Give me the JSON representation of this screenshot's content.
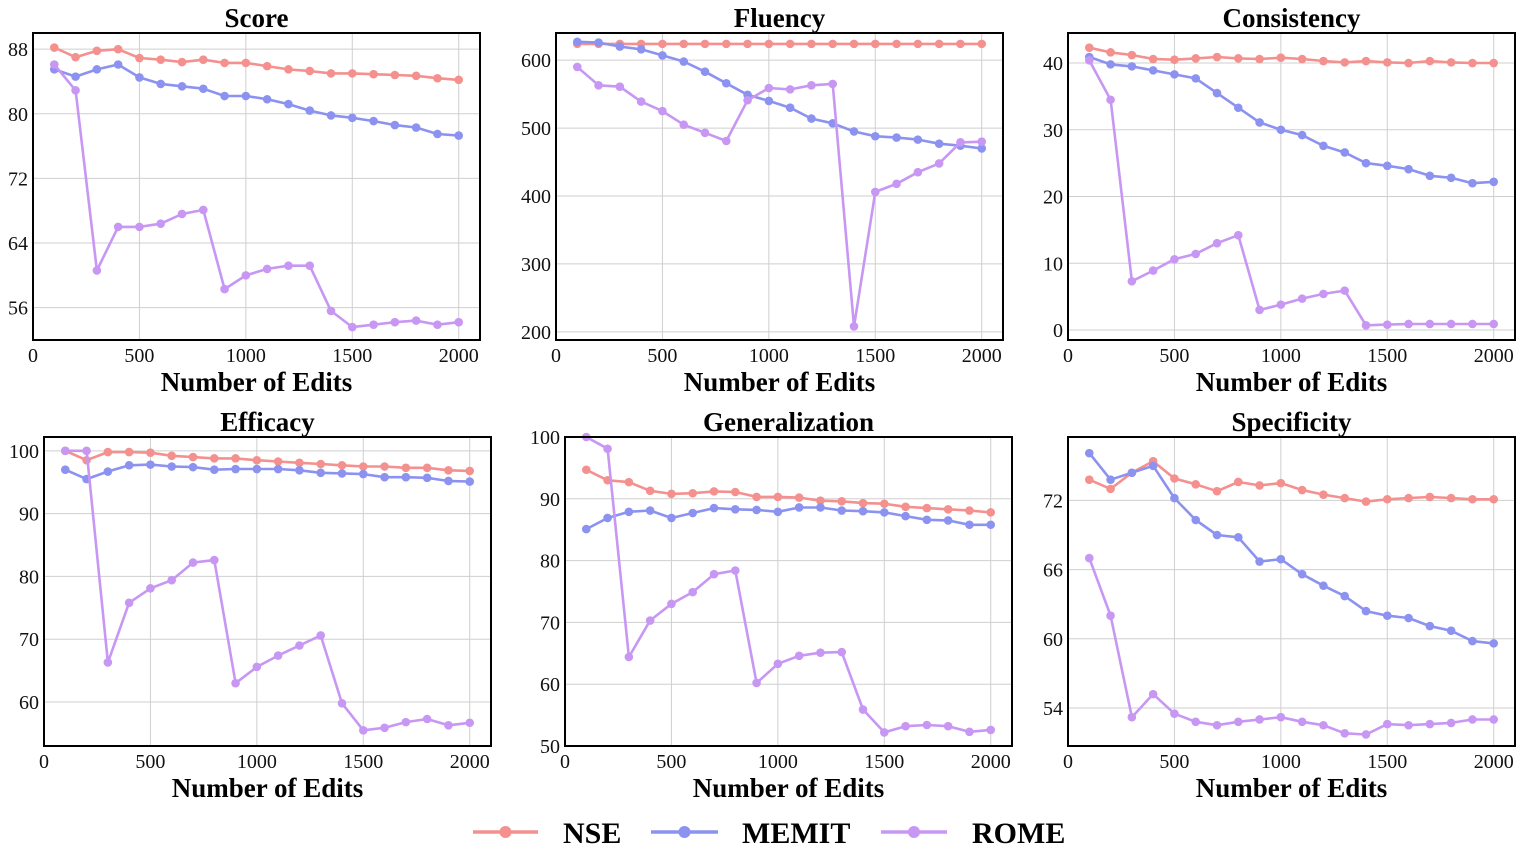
{
  "colors": {
    "NSE": "#f4908e",
    "MEMIT": "#8c92f0",
    "ROME": "#c797f3",
    "grid": "#cfcfcf",
    "axis": "#000000"
  },
  "legend": [
    {
      "name": "NSE",
      "color": "#f4908e"
    },
    {
      "name": "MEMIT",
      "color": "#8c92f0"
    },
    {
      "name": "ROME",
      "color": "#c797f3"
    }
  ],
  "chart_data": [
    {
      "type": "line",
      "title": "Score",
      "xlabel": "Number of Edits",
      "ylabel": "",
      "xlim": [
        0,
        2100
      ],
      "ylim": [
        52,
        90
      ],
      "xticks": [
        0,
        500,
        1000,
        1500,
        2000
      ],
      "yticks": [
        56,
        64,
        72,
        80,
        88
      ],
      "x": [
        100,
        200,
        300,
        400,
        500,
        600,
        700,
        800,
        900,
        1000,
        1100,
        1200,
        1300,
        1400,
        1500,
        1600,
        1700,
        1800,
        1900,
        2000
      ],
      "series": [
        {
          "name": "NSE",
          "values": [
            88.2,
            87.0,
            87.8,
            88.0,
            86.9,
            86.7,
            86.4,
            86.7,
            86.3,
            86.3,
            85.9,
            85.5,
            85.3,
            85.0,
            85.0,
            84.9,
            84.8,
            84.7,
            84.4,
            84.2
          ]
        },
        {
          "name": "MEMIT",
          "values": [
            85.5,
            84.6,
            85.5,
            86.1,
            84.5,
            83.7,
            83.4,
            83.1,
            82.2,
            82.2,
            81.8,
            81.2,
            80.4,
            79.8,
            79.5,
            79.1,
            78.6,
            78.3,
            77.5,
            77.3
          ]
        },
        {
          "name": "ROME",
          "values": [
            86.1,
            82.9,
            60.6,
            66.0,
            66.0,
            66.4,
            67.6,
            68.1,
            58.3,
            60.0,
            60.8,
            61.2,
            61.2,
            55.6,
            53.6,
            53.9,
            54.2,
            54.4,
            53.9,
            54.2
          ]
        }
      ]
    },
    {
      "type": "line",
      "title": "Fluency",
      "xlabel": "Number of Edits",
      "ylabel": "",
      "xlim": [
        0,
        2100
      ],
      "ylim": [
        188,
        640
      ],
      "xticks": [
        0,
        500,
        1000,
        1500,
        2000
      ],
      "yticks": [
        200,
        300,
        400,
        500,
        600
      ],
      "x": [
        100,
        200,
        300,
        400,
        500,
        600,
        700,
        800,
        900,
        1000,
        1100,
        1200,
        1300,
        1400,
        1500,
        1600,
        1700,
        1800,
        1900,
        2000
      ],
      "series": [
        {
          "name": "NSE",
          "values": [
            624,
            624,
            624,
            624,
            624,
            624,
            624,
            624,
            624,
            624,
            624,
            624,
            624,
            624,
            624,
            624,
            624,
            624,
            624,
            624
          ]
        },
        {
          "name": "MEMIT",
          "values": [
            627,
            626,
            620,
            616,
            607,
            598,
            583,
            566,
            549,
            540,
            530,
            514,
            507,
            495,
            488,
            486,
            483,
            477,
            474,
            470
          ]
        },
        {
          "name": "ROME",
          "values": [
            590,
            563,
            561,
            539,
            525,
            505,
            493,
            481,
            541,
            559,
            557,
            563,
            565,
            208,
            406,
            418,
            435,
            448,
            479,
            480
          ]
        }
      ]
    },
    {
      "type": "line",
      "title": "Consistency",
      "xlabel": "Number of Edits",
      "ylabel": "",
      "xlim": [
        0,
        2100
      ],
      "ylim": [
        -1.5,
        44.5
      ],
      "xticks": [
        0,
        500,
        1000,
        1500,
        2000
      ],
      "yticks": [
        0,
        10,
        20,
        30,
        40
      ],
      "x": [
        100,
        200,
        300,
        400,
        500,
        600,
        700,
        800,
        900,
        1000,
        1100,
        1200,
        1300,
        1400,
        1500,
        1600,
        1700,
        1800,
        1900,
        2000
      ],
      "series": [
        {
          "name": "NSE",
          "values": [
            42.3,
            41.6,
            41.2,
            40.6,
            40.5,
            40.7,
            40.9,
            40.7,
            40.6,
            40.8,
            40.6,
            40.3,
            40.1,
            40.3,
            40.1,
            40.0,
            40.3,
            40.1,
            40.0,
            40.0
          ]
        },
        {
          "name": "MEMIT",
          "values": [
            40.9,
            39.8,
            39.5,
            38.9,
            38.3,
            37.7,
            35.5,
            33.3,
            31.1,
            30.0,
            29.2,
            27.6,
            26.6,
            25.0,
            24.6,
            24.1,
            23.1,
            22.8,
            22.0,
            22.2
          ]
        },
        {
          "name": "ROME",
          "values": [
            40.4,
            34.5,
            7.3,
            8.9,
            10.6,
            11.4,
            13.0,
            14.2,
            3.0,
            3.8,
            4.7,
            5.4,
            5.9,
            0.7,
            0.8,
            0.9,
            0.9,
            0.9,
            0.9,
            0.9
          ]
        }
      ]
    },
    {
      "type": "line",
      "title": "Efficacy",
      "xlabel": "Number of Edits",
      "ylabel": "",
      "xlim": [
        0,
        2100
      ],
      "ylim": [
        53,
        102.2
      ],
      "xticks": [
        0,
        500,
        1000,
        1500,
        2000
      ],
      "yticks": [
        60,
        70,
        80,
        90,
        100
      ],
      "x": [
        100,
        200,
        300,
        400,
        500,
        600,
        700,
        800,
        900,
        1000,
        1100,
        1200,
        1300,
        1400,
        1500,
        1600,
        1700,
        1800,
        1900,
        2000
      ],
      "series": [
        {
          "name": "NSE",
          "values": [
            100,
            98.5,
            99.8,
            99.8,
            99.7,
            99.2,
            99.0,
            98.8,
            98.8,
            98.5,
            98.3,
            98.1,
            97.9,
            97.7,
            97.5,
            97.5,
            97.3,
            97.3,
            96.9,
            96.8
          ]
        },
        {
          "name": "MEMIT",
          "values": [
            97.0,
            95.5,
            96.7,
            97.7,
            97.8,
            97.5,
            97.4,
            97.0,
            97.1,
            97.1,
            97.1,
            96.9,
            96.5,
            96.4,
            96.3,
            95.8,
            95.8,
            95.7,
            95.2,
            95.1
          ]
        },
        {
          "name": "ROME",
          "values": [
            100,
            100,
            66.3,
            75.8,
            78.1,
            79.4,
            82.2,
            82.6,
            63.0,
            65.6,
            67.4,
            69.0,
            70.6,
            59.8,
            55.5,
            55.9,
            56.8,
            57.3,
            56.3,
            56.7
          ]
        }
      ]
    },
    {
      "type": "line",
      "title": "Generalization",
      "xlabel": "Number of Edits",
      "ylabel": "",
      "xlim": [
        0,
        2100
      ],
      "ylim": [
        50,
        100
      ],
      "xticks": [
        0,
        500,
        1000,
        1500,
        2000
      ],
      "yticks": [
        50,
        60,
        70,
        80,
        90,
        100
      ],
      "x": [
        100,
        200,
        300,
        400,
        500,
        600,
        700,
        800,
        900,
        1000,
        1100,
        1200,
        1300,
        1400,
        1500,
        1600,
        1700,
        1800,
        1900,
        2000
      ],
      "series": [
        {
          "name": "NSE",
          "values": [
            94.7,
            93.0,
            92.7,
            91.3,
            90.8,
            90.9,
            91.2,
            91.1,
            90.3,
            90.3,
            90.2,
            89.7,
            89.6,
            89.3,
            89.2,
            88.7,
            88.5,
            88.3,
            88.1,
            87.8
          ]
        },
        {
          "name": "MEMIT",
          "values": [
            85.1,
            86.9,
            87.9,
            88.1,
            86.9,
            87.7,
            88.5,
            88.3,
            88.2,
            87.9,
            88.6,
            88.6,
            88.1,
            88.0,
            87.8,
            87.2,
            86.6,
            86.5,
            85.8,
            85.8
          ]
        },
        {
          "name": "ROME",
          "values": [
            100,
            98.1,
            64.4,
            70.3,
            73.0,
            74.9,
            77.8,
            78.4,
            60.2,
            63.3,
            64.6,
            65.1,
            65.2,
            55.9,
            52.2,
            53.2,
            53.4,
            53.2,
            52.3,
            52.6
          ]
        }
      ]
    },
    {
      "type": "line",
      "title": "Specificity",
      "xlabel": "Number of Edits",
      "ylabel": "",
      "xlim": [
        0,
        2100
      ],
      "ylim": [
        50.7,
        77.5
      ],
      "xticks": [
        0,
        500,
        1000,
        1500,
        2000
      ],
      "yticks": [
        54,
        60,
        66,
        72
      ],
      "x": [
        100,
        200,
        300,
        400,
        500,
        600,
        700,
        800,
        900,
        1000,
        1100,
        1200,
        1300,
        1400,
        1500,
        1600,
        1700,
        1800,
        1900,
        2000
      ],
      "series": [
        {
          "name": "NSE",
          "values": [
            73.8,
            73.0,
            74.4,
            75.4,
            73.9,
            73.4,
            72.8,
            73.6,
            73.3,
            73.5,
            72.9,
            72.5,
            72.2,
            71.9,
            72.1,
            72.2,
            72.3,
            72.2,
            72.1,
            72.1
          ]
        },
        {
          "name": "MEMIT",
          "values": [
            76.1,
            73.8,
            74.4,
            75.0,
            72.2,
            70.3,
            69.0,
            68.8,
            66.7,
            66.9,
            65.6,
            64.6,
            63.7,
            62.4,
            62.0,
            61.8,
            61.1,
            60.7,
            59.8,
            59.6
          ]
        },
        {
          "name": "ROME",
          "values": [
            67.0,
            62.0,
            53.2,
            55.2,
            53.5,
            52.8,
            52.5,
            52.8,
            53.0,
            53.2,
            52.8,
            52.5,
            51.8,
            51.7,
            52.6,
            52.5,
            52.6,
            52.7,
            53.0,
            53.0
          ]
        }
      ]
    }
  ]
}
